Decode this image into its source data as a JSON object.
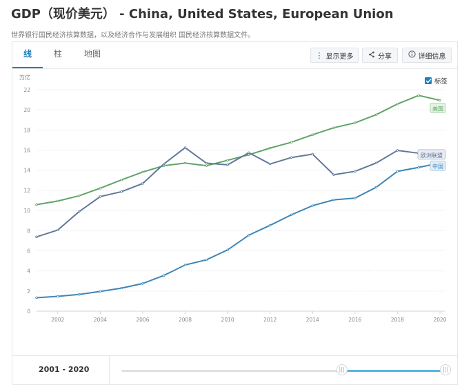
{
  "header": {
    "title": "GDP（现价美元） - China, United States, European Union",
    "subtitle": "世界银行国民经济核算数据，以及经济合作与发展组织 国民经济核算数据文件。"
  },
  "tabs": [
    {
      "label": "线",
      "active": true
    },
    {
      "label": "柱",
      "active": false
    },
    {
      "label": "地图",
      "active": false
    }
  ],
  "toolbar": {
    "more_label": "显示更多",
    "share_label": "分享",
    "details_label": "详细信息"
  },
  "legend": {
    "checkbox_label": "标签",
    "checked": true
  },
  "slider": {
    "range_label": "2001 - 2020",
    "start_fraction": 0.68,
    "end_fraction": 1.0
  },
  "colors": {
    "china": "#3e85b5",
    "us": "#5fa466",
    "eu": "#62789a",
    "accent": "#1c7fb6"
  },
  "chart_data": {
    "type": "line",
    "ylabel": "万亿",
    "ylim": [
      0,
      22
    ],
    "yticks": [
      "0",
      "2",
      "4",
      "6",
      "8",
      "10",
      "12",
      "14",
      "16",
      "18",
      "20",
      "22"
    ],
    "xlim": [
      2001,
      2020
    ],
    "xticks": [
      "2002",
      "2004",
      "2006",
      "2008",
      "2010",
      "2012",
      "2014",
      "2016",
      "2018",
      "2020"
    ],
    "grid": true,
    "x": [
      2001,
      2002,
      2003,
      2004,
      2005,
      2006,
      2007,
      2008,
      2009,
      2010,
      2011,
      2012,
      2013,
      2014,
      2015,
      2016,
      2017,
      2018,
      2019,
      2020
    ],
    "series": [
      {
        "name": "美国",
        "key": "us",
        "values": [
          10.58,
          10.94,
          11.46,
          12.21,
          13.04,
          13.82,
          14.45,
          14.71,
          14.45,
          14.99,
          15.54,
          16.2,
          16.78,
          17.52,
          18.22,
          18.71,
          19.52,
          20.58,
          21.43,
          20.94
        ]
      },
      {
        "name": "欧洲联盟",
        "key": "eu",
        "values": [
          7.38,
          8.06,
          9.88,
          11.38,
          11.87,
          12.68,
          14.63,
          16.24,
          14.7,
          14.54,
          15.74,
          14.62,
          15.26,
          15.6,
          13.55,
          13.89,
          14.72,
          15.97,
          15.69,
          15.29
        ]
      },
      {
        "name": "中国",
        "key": "china",
        "values": [
          1.34,
          1.47,
          1.66,
          1.96,
          2.29,
          2.75,
          3.55,
          4.59,
          5.1,
          6.09,
          7.55,
          8.53,
          9.57,
          10.48,
          11.06,
          11.23,
          12.31,
          13.89,
          14.28,
          14.72
        ]
      }
    ]
  }
}
